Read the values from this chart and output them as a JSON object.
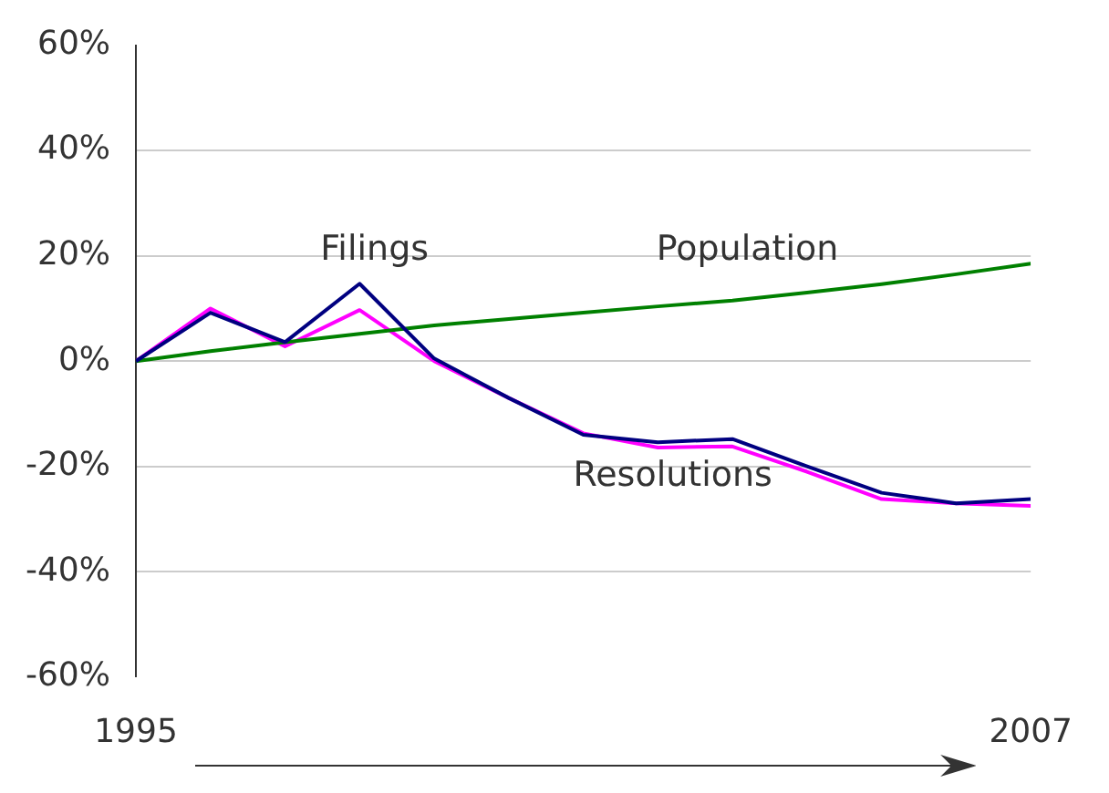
{
  "chart_data": {
    "type": "line",
    "x": [
      1995,
      1996,
      1997,
      1998,
      1999,
      2000,
      2001,
      2002,
      2003,
      2004,
      2005,
      2006,
      2007
    ],
    "series": [
      {
        "name": "Filings",
        "color": "#000080",
        "values": [
          0,
          9.2,
          3.6,
          14.7,
          0.5,
          -7,
          -14,
          -15.4,
          -14.8,
          -20,
          -25,
          -27,
          -26.2
        ]
      },
      {
        "name": "Population",
        "color": "#008000",
        "values": [
          0,
          1.9,
          3.6,
          5.2,
          6.8,
          8,
          9.2,
          10.4,
          11.5,
          13,
          14.6,
          16.5,
          18.5
        ]
      },
      {
        "name": "Resolutions",
        "color": "#ff00ff",
        "values": [
          0,
          10,
          2.8,
          9.7,
          0,
          -7,
          -13.7,
          -16.4,
          -16.2,
          -21,
          -26.2,
          -27,
          -27.5
        ]
      }
    ],
    "xlim": [
      1995,
      2007
    ],
    "xticks": [
      1995,
      2007
    ],
    "ylim": [
      -60,
      60
    ],
    "yticks": [
      {
        "value": -60,
        "label": "-60%"
      },
      {
        "value": -40,
        "label": "-40%"
      },
      {
        "value": -20,
        "label": "-20%"
      },
      {
        "value": 0,
        "label": "0%"
      },
      {
        "value": 20,
        "label": "20%"
      },
      {
        "value": 40,
        "label": "40%"
      },
      {
        "value": 60,
        "label": "60%"
      }
    ],
    "grid": "y",
    "legend": false,
    "marker": "none",
    "line_style": "solid"
  }
}
